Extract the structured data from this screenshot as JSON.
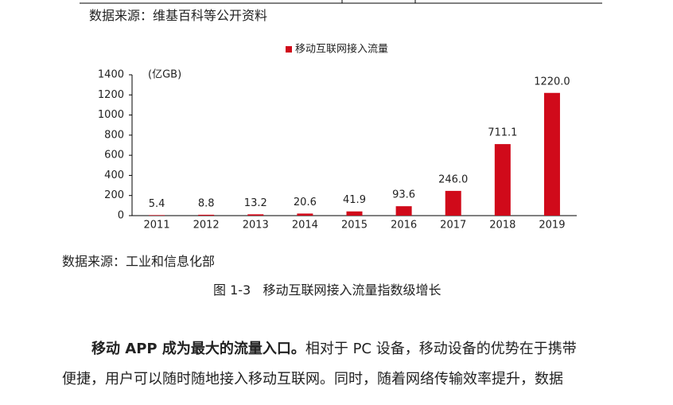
{
  "source_top": "数据来源：维基百科等公开资料",
  "chart_data": {
    "type": "bar",
    "legend": "移动互联网接入流量",
    "y_label": "(亿GB)",
    "color": "#d00a1a",
    "categories": [
      "2011",
      "2012",
      "2013",
      "2014",
      "2015",
      "2016",
      "2017",
      "2018",
      "2019"
    ],
    "values": [
      5.4,
      8.8,
      13.2,
      20.6,
      41.9,
      93.6,
      246.0,
      711.1,
      1220.0
    ],
    "value_labels": [
      "5.4",
      "8.8",
      "13.2",
      "20.6",
      "41.9",
      "93.6",
      "246.0",
      "711.1",
      "1220.0"
    ],
    "ylim": [
      0,
      1400
    ],
    "yticks": [
      0,
      200,
      400,
      600,
      800,
      1000,
      1200,
      1400
    ]
  },
  "source_chart": "数据来源：工业和信息化部",
  "caption": "图 1-3   移动互联网接入流量指数级增长",
  "paragraph": {
    "lead": "移动 APP 成为最大的流量入口。",
    "line1": "相对于 PC 设备，移动设备的优势在于携带",
    "line2": "便捷，用户可以随时随地接入移动互联网。同时，随着网络传输效率提升，数据"
  }
}
